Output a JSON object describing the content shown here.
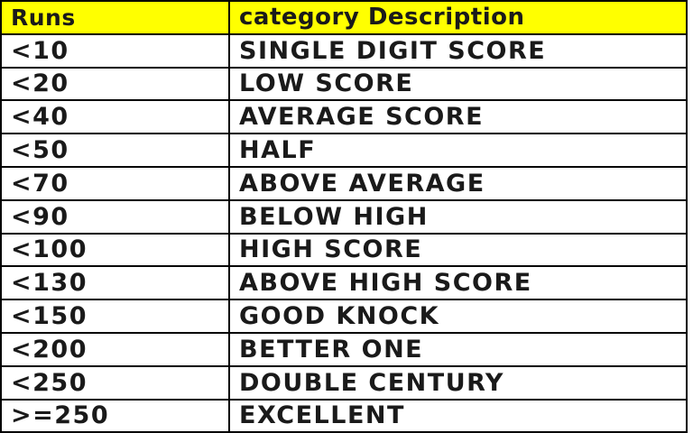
{
  "table": {
    "headers": [
      "Runs",
      "category Description"
    ],
    "rows": [
      [
        "<10",
        "SINGLE DIGIT SCORE"
      ],
      [
        "<20",
        "LOW SCORE"
      ],
      [
        "<40",
        "AVERAGE SCORE"
      ],
      [
        "<50",
        "HALF"
      ],
      [
        "<70",
        "ABOVE AVERAGE"
      ],
      [
        "<90",
        "BELOW HIGH"
      ],
      [
        "<100",
        "HIGH SCORE"
      ],
      [
        "<130",
        "ABOVE HIGH SCORE"
      ],
      [
        "<150",
        "GOOD KNOCK"
      ],
      [
        "<200",
        "BETTER ONE"
      ],
      [
        "<250",
        "DOUBLE CENTURY"
      ],
      [
        ">=250",
        "EXCELLENT"
      ]
    ]
  },
  "colors": {
    "header_background": "#ffff00",
    "border": "#000000",
    "text": "#1a1a1a"
  }
}
